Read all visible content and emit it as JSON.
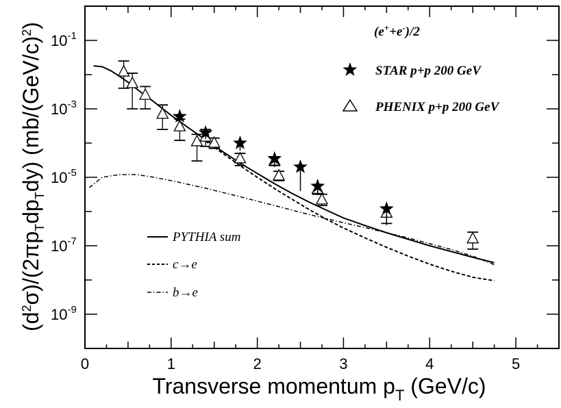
{
  "chart_data": {
    "type": "scatter",
    "title": "",
    "xlabel": "Transverse momentum p_T (GeV/c)",
    "xlabel_main": "Transverse momentum p",
    "xlabel_sub": "T",
    "xlabel_tail": " (GeV/c)",
    "ylabel": "(d²σ)/(2πp_T dp_T dy) (mb/(GeV/c)²)",
    "ylabel_parts": [
      "(d",
      "2",
      "σ)/(2πp",
      "T",
      "dp",
      "T",
      "dy)  (mb/(GeV/c)",
      "2",
      ")"
    ],
    "xlim": [
      0,
      5.5
    ],
    "ylim_log10": [
      -10,
      0
    ],
    "y_scale": "log",
    "x_ticks": [
      0,
      1,
      2,
      3,
      4,
      5
    ],
    "x_tick_labels": [
      "0",
      "1",
      "2",
      "3",
      "4",
      "5"
    ],
    "y_ticks": [
      -9,
      -7,
      -5,
      -3,
      -1
    ],
    "y_tick_labels": [
      "10",
      "10",
      "10",
      "10",
      "10"
    ],
    "y_tick_exponents": [
      "-9",
      "-7",
      "-5",
      "-3",
      "-1"
    ],
    "grid": false,
    "annotation": "(e⁺+e⁻)/2",
    "annotation_parts": [
      "(e",
      "+",
      "+e",
      "-",
      ")/2"
    ],
    "legend_placement": "top-right",
    "legend": [
      {
        "label": "STAR p+p 200 GeV",
        "marker": "star"
      },
      {
        "label": "PHENIX p+p 200 GeV",
        "marker": "open-triangle"
      }
    ],
    "model_legend_placement": "bottom-left",
    "model_legend": [
      {
        "label": "PYTHIA sum",
        "style": "solid"
      },
      {
        "label": "c→e",
        "style": "dashed"
      },
      {
        "label": "b→e",
        "style": "dashdot"
      }
    ],
    "star": {
      "name": "STAR p+p 200 GeV",
      "points": [
        {
          "x": 1.1,
          "y": 0.0006,
          "yerr_lo": 0.0002,
          "yerr_hi": 0.0002
        },
        {
          "x": 1.4,
          "y": 0.0002,
          "yerr_lo": 7e-05,
          "yerr_hi": 7e-05
        },
        {
          "x": 1.8,
          "y": 0.0001,
          "yerr_lo": 4e-05,
          "yerr_hi": 4e-05
        },
        {
          "x": 2.2,
          "y": 3.5e-05,
          "yerr_lo": 1.5e-05,
          "yerr_hi": 1e-05
        },
        {
          "x": 2.5,
          "y": 2e-05,
          "yerr_lo": 1.6e-05,
          "yerr_hi": 8e-06
        },
        {
          "x": 2.7,
          "y": 5.5e-06,
          "yerr_lo": 2.5e-06,
          "yerr_hi": 2e-06
        },
        {
          "x": 3.5,
          "y": 1.2e-06,
          "yerr_lo": 8e-07,
          "yerr_hi": 4e-07
        }
      ]
    },
    "phenix": {
      "name": "PHENIX p+p 200 GeV",
      "points": [
        {
          "x": 0.45,
          "y": 0.012,
          "ylo": 0.004,
          "yhi": 0.025
        },
        {
          "x": 0.55,
          "y": 0.0055,
          "ylo": 0.001,
          "yhi": 0.011
        },
        {
          "x": 0.7,
          "y": 0.0025,
          "ylo": 0.001,
          "yhi": 0.0045
        },
        {
          "x": 0.9,
          "y": 0.0007,
          "ylo": 0.00025,
          "yhi": 0.0013
        },
        {
          "x": 1.1,
          "y": 0.0003,
          "ylo": 0.00012,
          "yhi": 0.0005
        },
        {
          "x": 1.3,
          "y": 0.00011,
          "ylo": 3e-05,
          "yhi": 0.00018
        },
        {
          "x": 1.4,
          "y": 0.00015,
          "ylo": 8e-05,
          "yhi": 0.00025
        },
        {
          "x": 1.5,
          "y": 0.0001,
          "ylo": 7e-05,
          "yhi": 0.00014
        },
        {
          "x": 1.8,
          "y": 3.5e-05,
          "ylo": 2.2e-05,
          "yhi": 5e-05
        },
        {
          "x": 2.2,
          "y": 3e-05,
          "ylo": 2.2e-05,
          "yhi": 4e-05
        },
        {
          "x": 2.25,
          "y": 1.1e-05,
          "ylo": 8e-06,
          "yhi": 1.5e-05
        },
        {
          "x": 2.7,
          "y": 4.5e-06,
          "ylo": 3.2e-06,
          "yhi": 6e-06
        },
        {
          "x": 2.75,
          "y": 2.2e-06,
          "ylo": 1.5e-06,
          "yhi": 3.2e-06
        },
        {
          "x": 3.5,
          "y": 9e-07,
          "ylo": 4.5e-07,
          "yhi": 1.3e-06
        },
        {
          "x": 4.5,
          "y": 1.6e-07,
          "ylo": 8e-08,
          "yhi": 2.5e-07
        }
      ]
    },
    "curves": [
      {
        "name": "PYTHIA sum",
        "style": "solid",
        "x": [
          0.1,
          0.2,
          0.3,
          0.4,
          0.5,
          0.6,
          0.8,
          1.0,
          1.2,
          1.4,
          1.6,
          1.8,
          2.0,
          2.2,
          2.4,
          2.6,
          2.8,
          3.0,
          3.25,
          3.5,
          3.75,
          4.0,
          4.25,
          4.5,
          4.75
        ],
        "y": [
          0.018,
          0.017,
          0.013,
          0.009,
          0.006,
          0.0038,
          0.0016,
          0.00065,
          0.00028,
          0.000125,
          5.6e-05,
          2.6e-05,
          1.3e-05,
          6.5e-06,
          3.4e-06,
          1.9e-06,
          1.1e-06,
          6.5e-07,
          3.9e-07,
          2.4e-07,
          1.55e-07,
          1e-07,
          6.8e-08,
          4.6e-08,
          3.2e-08
        ]
      },
      {
        "name": "c→e",
        "style": "dashed",
        "x": [
          1.4,
          1.6,
          1.8,
          2.0,
          2.2,
          2.4,
          2.6,
          2.8,
          3.0,
          3.25,
          3.5,
          3.75,
          4.0,
          4.25,
          4.5,
          4.75
        ],
        "y": [
          0.000115,
          5e-05,
          2.2e-05,
          1e-05,
          4.7e-06,
          2.3e-06,
          1.15e-06,
          6e-07,
          3.3e-07,
          1.7e-07,
          9e-08,
          5e-08,
          2.9e-08,
          1.8e-08,
          1.2e-08,
          9.5e-09
        ]
      },
      {
        "name": "b→e",
        "style": "dashdot",
        "x": [
          0.05,
          0.2,
          0.4,
          0.6,
          0.8,
          1.0,
          1.2,
          1.4,
          1.6,
          1.8,
          2.0,
          2.2,
          2.4,
          2.6,
          2.8,
          3.0,
          3.25,
          3.5,
          3.75,
          4.0,
          4.25,
          4.5,
          4.75
        ],
        "y": [
          5e-06,
          1e-05,
          1.2e-05,
          1.2e-05,
          1e-05,
          8e-06,
          6.2e-06,
          4.8e-06,
          3.6e-06,
          2.7e-06,
          2e-06,
          1.5e-06,
          1.1e-06,
          8.2e-07,
          6.2e-07,
          4.7e-07,
          3.4e-07,
          2.4e-07,
          1.7e-07,
          1.15e-07,
          7.8e-08,
          5e-08,
          2.8e-08
        ]
      }
    ]
  }
}
